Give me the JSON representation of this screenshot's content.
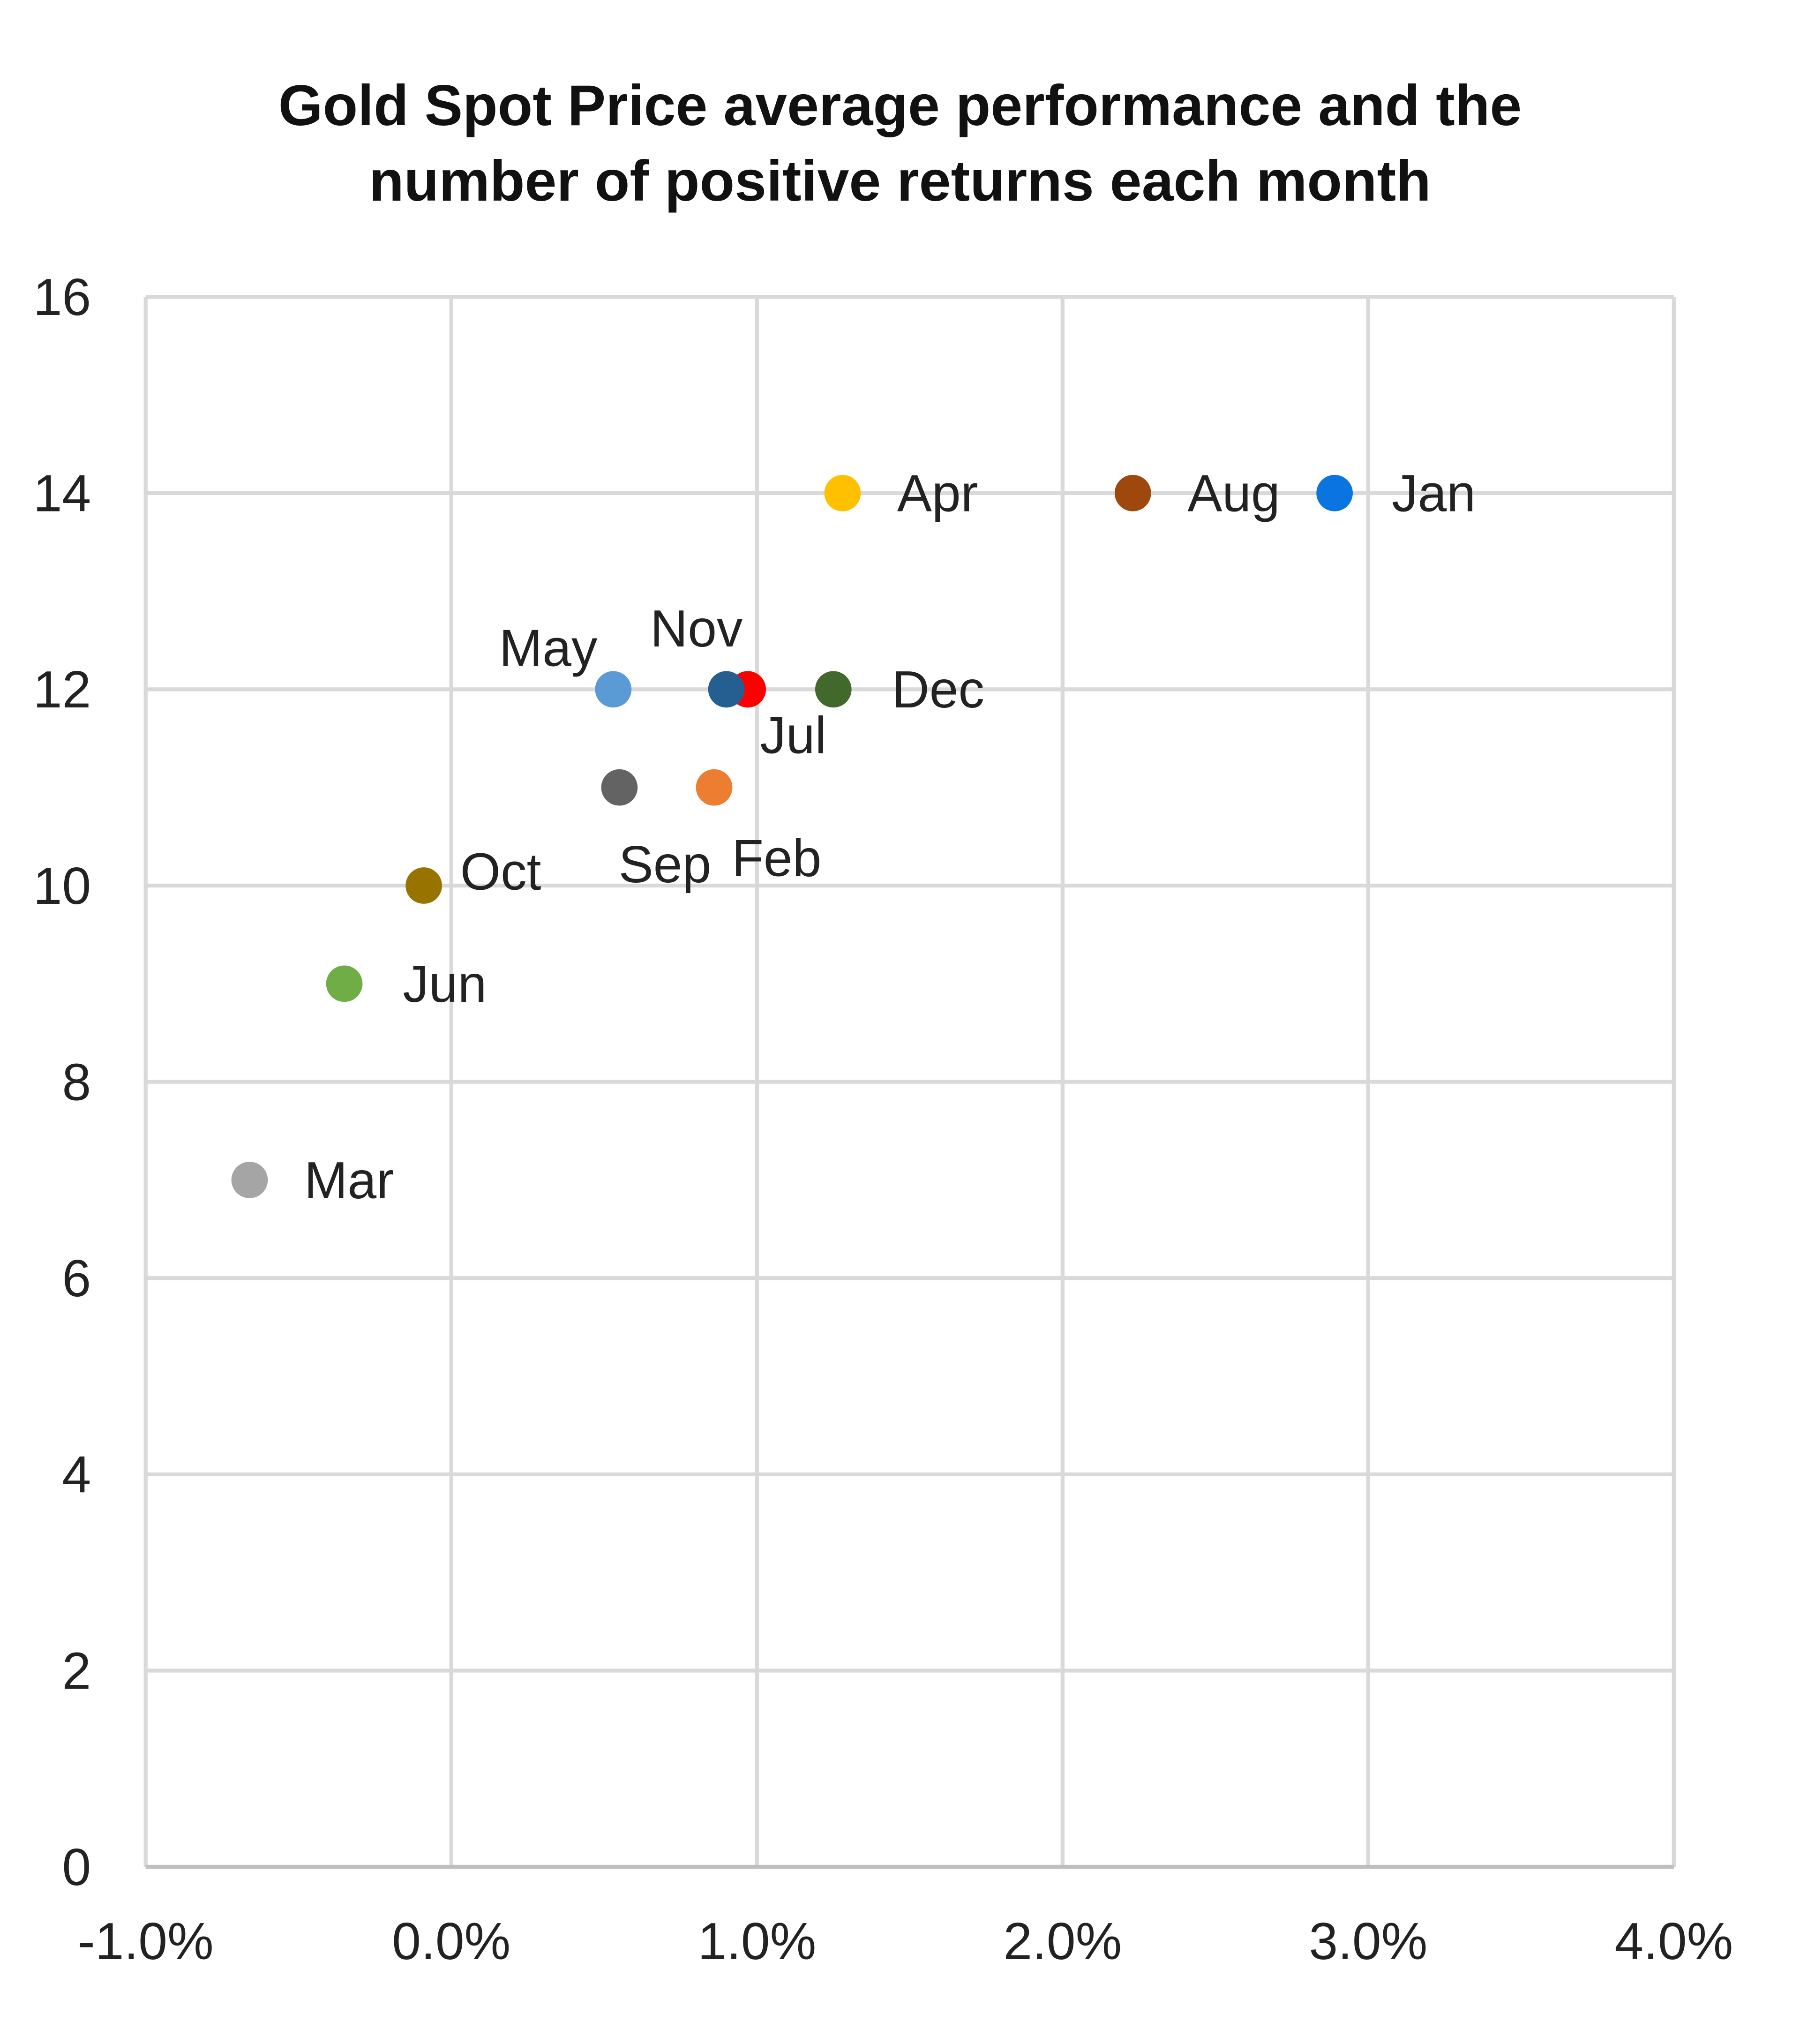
{
  "chart_data": {
    "type": "scatter",
    "title": [
      "Gold Spot Price average performance and the",
      "number of positive returns each month"
    ],
    "xlabel": "",
    "ylabel": "",
    "xlim": [
      -1.0,
      4.0
    ],
    "ylim": [
      0,
      16
    ],
    "x_ticks": [
      "-1.0%",
      "0.0%",
      "1.0%",
      "2.0%",
      "3.0%",
      "4.0%"
    ],
    "y_ticks": [
      "0",
      "2",
      "4",
      "6",
      "8",
      "10",
      "12",
      "14",
      "16"
    ],
    "x_unit": "%",
    "grid": true,
    "legend": "none",
    "points": [
      {
        "label": "Jan",
        "x": 2.89,
        "y": 14,
        "color": "#0a74e0"
      },
      {
        "label": "Feb",
        "x": 0.86,
        "y": 11,
        "color": "#ed7d31"
      },
      {
        "label": "Mar",
        "x": -0.66,
        "y": 7,
        "color": "#a5a5a5"
      },
      {
        "label": "Apr",
        "x": 1.28,
        "y": 14,
        "color": "#ffc000"
      },
      {
        "label": "May",
        "x": 0.53,
        "y": 12,
        "color": "#5b9bd5"
      },
      {
        "label": "Jun",
        "x": -0.35,
        "y": 9,
        "color": "#70ad47"
      },
      {
        "label": "Jul",
        "x": 0.97,
        "y": 12,
        "color": "#ff0000"
      },
      {
        "label": "Aug",
        "x": 2.23,
        "y": 14,
        "color": "#9e480e"
      },
      {
        "label": "Sep",
        "x": 0.55,
        "y": 11,
        "color": "#636363"
      },
      {
        "label": "Oct",
        "x": -0.09,
        "y": 10,
        "color": "#997300"
      },
      {
        "label": "Nov",
        "x": 0.9,
        "y": 12,
        "color": "#255e91"
      },
      {
        "label": "Dec",
        "x": 1.25,
        "y": 12,
        "color": "#43682b"
      }
    ]
  }
}
